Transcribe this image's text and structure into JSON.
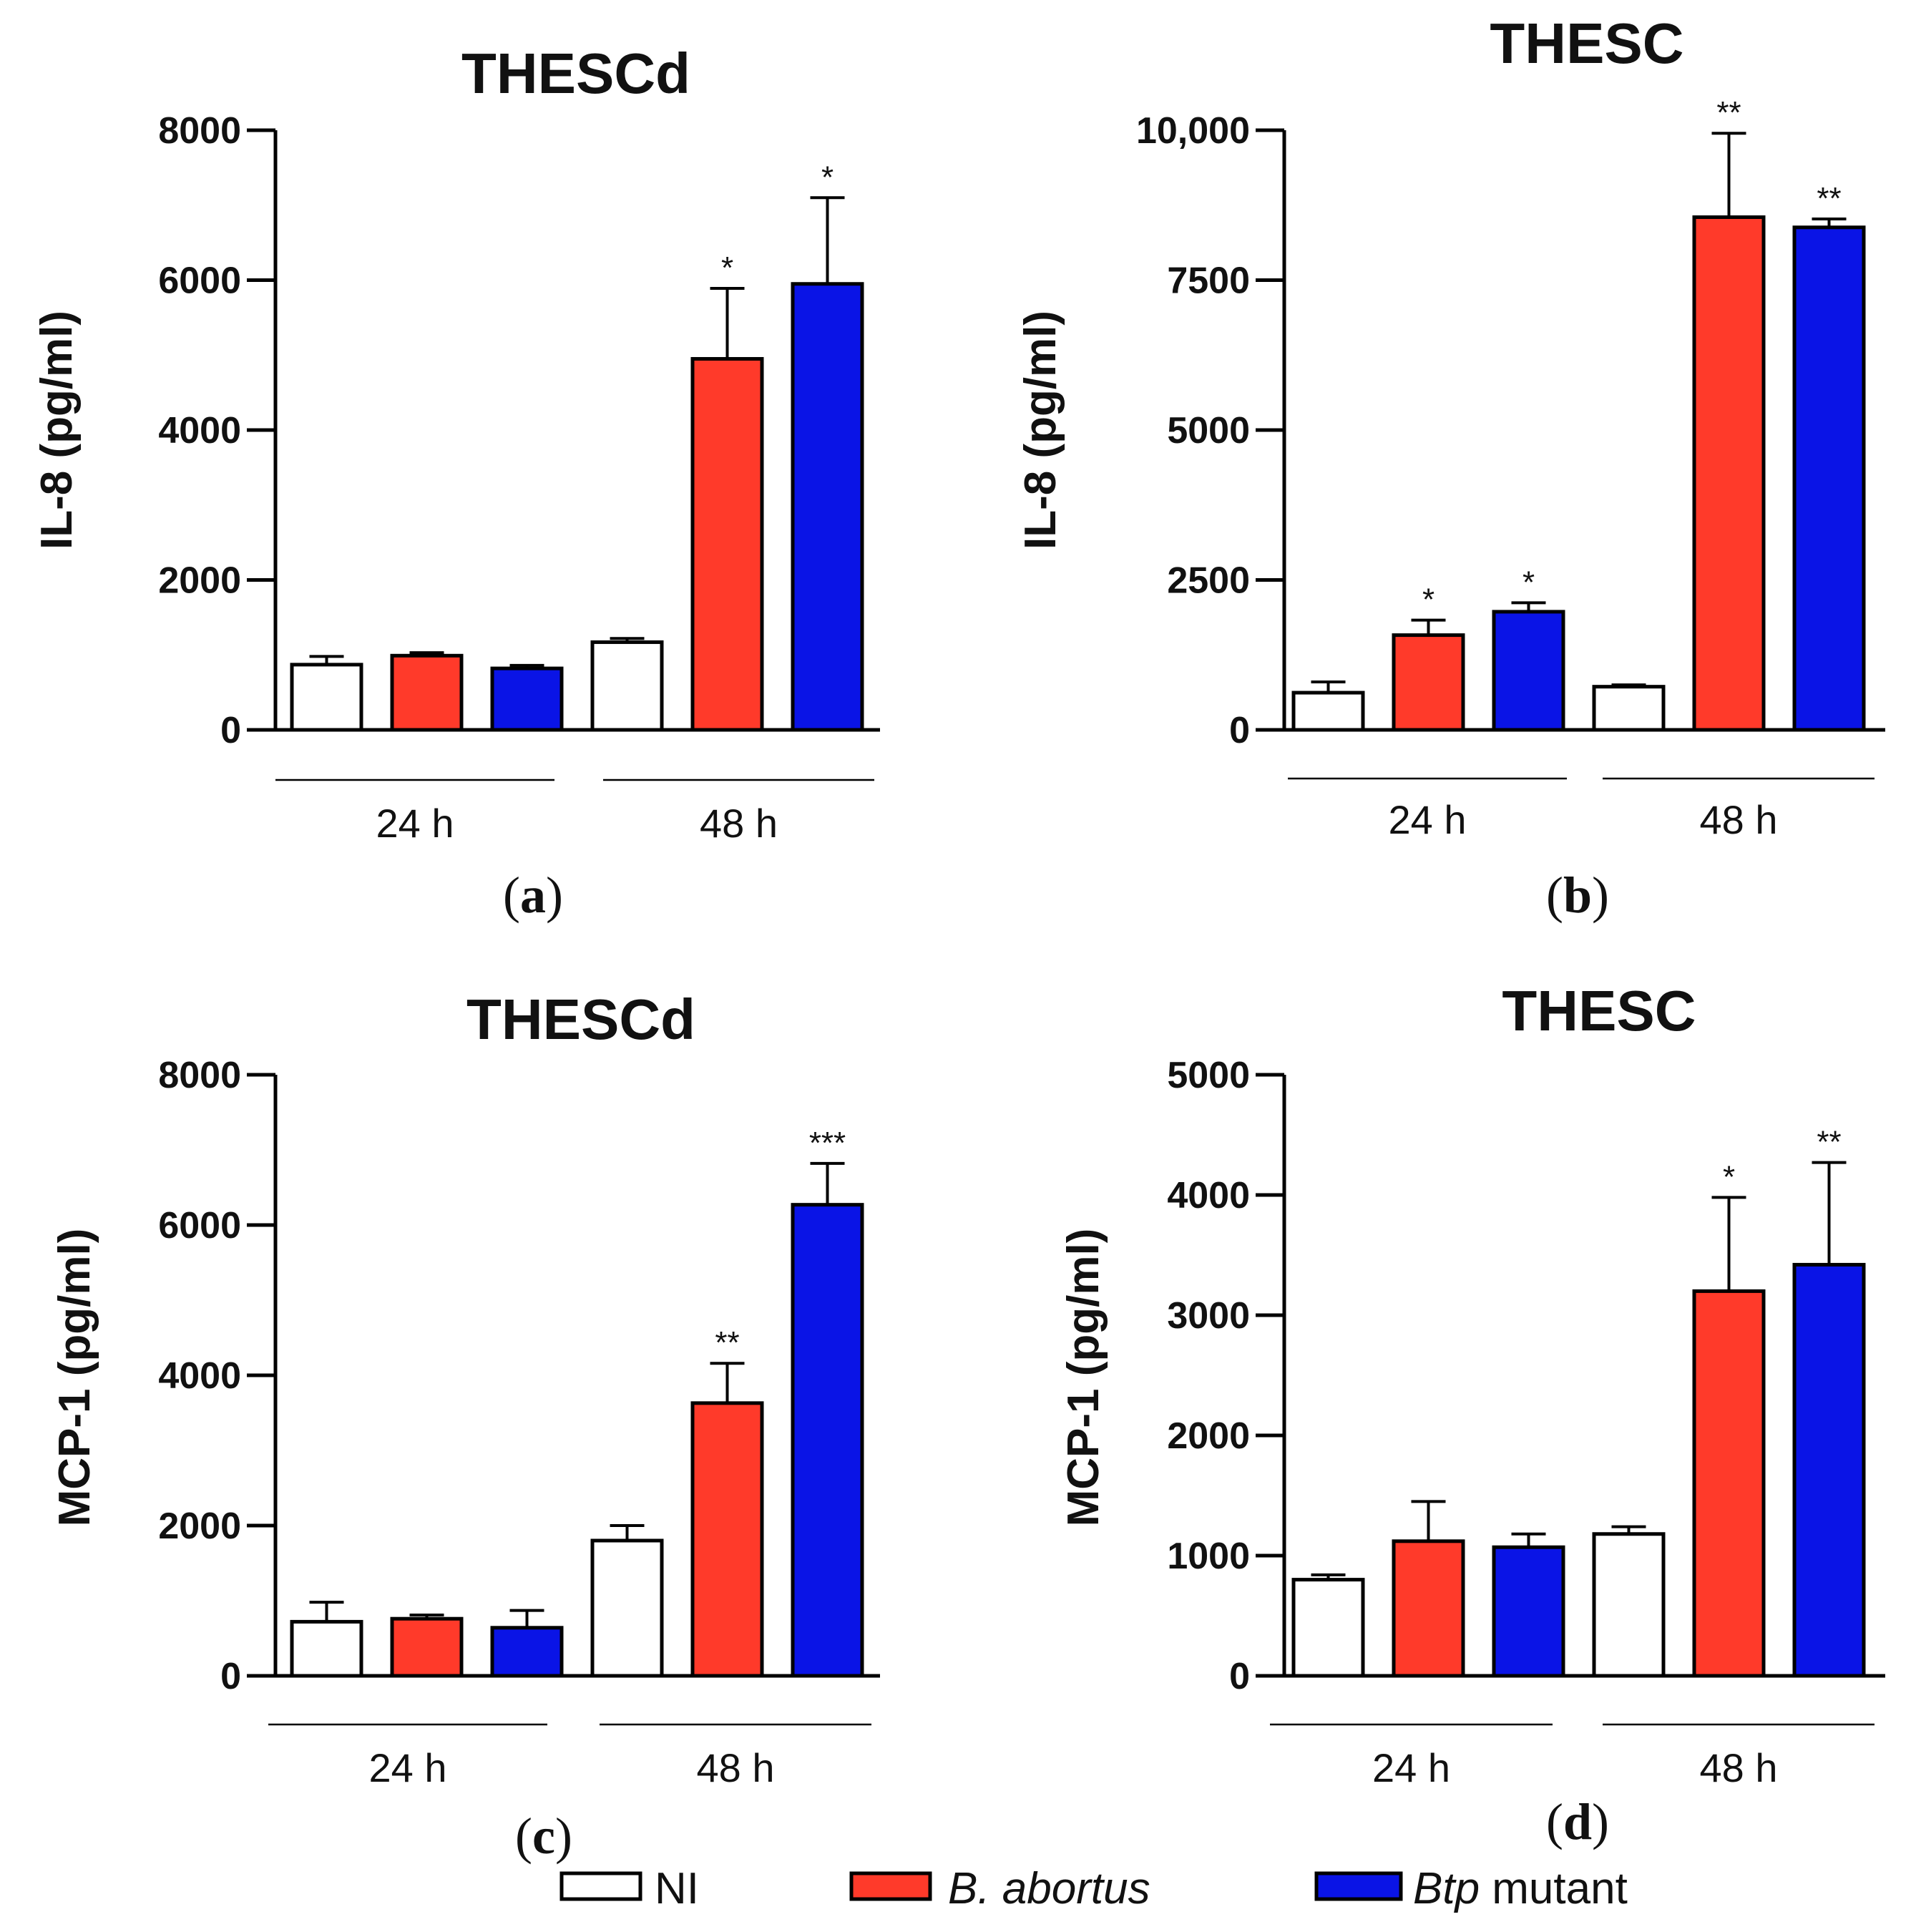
{
  "colors": {
    "NI": "#ffffff",
    "B. abortus": "#ff3a2a",
    "Btp mutant": "#0a14e6",
    "axis": "#000000"
  },
  "legend": [
    {
      "series": "NI",
      "prefix": "",
      "italic": "",
      "text": "NI"
    },
    {
      "series": "B. abortus",
      "prefix": "",
      "italic": "B. abortus",
      "text": ""
    },
    {
      "series": "Btp mutant",
      "prefix": "",
      "italic": "Btp",
      "text": " mutant"
    }
  ],
  "chart_data": [
    {
      "panel": "(a)",
      "sub_label": {
        "open": "(",
        "letter": "a",
        "close": ")"
      },
      "type": "bar",
      "title": "THESCd",
      "ylabel": "IL-8 (pg/ml)",
      "ylim": [
        0,
        8000
      ],
      "yticks": [
        0,
        2000,
        4000,
        6000,
        8000
      ],
      "ytick_labels": [
        "0",
        "2000",
        "4000",
        "6000",
        "8000"
      ],
      "groups": [
        "24 h",
        "48 h"
      ],
      "series_order": [
        "NI",
        "B. abortus",
        "Btp mutant"
      ],
      "bars": [
        {
          "group": "24 h",
          "series": "NI",
          "value": 870,
          "error": 110,
          "sig": ""
        },
        {
          "group": "24 h",
          "series": "B. abortus",
          "value": 990,
          "error": 40,
          "sig": ""
        },
        {
          "group": "24 h",
          "series": "Btp mutant",
          "value": 820,
          "error": 40,
          "sig": ""
        },
        {
          "group": "48 h",
          "series": "NI",
          "value": 1170,
          "error": 50,
          "sig": ""
        },
        {
          "group": "48 h",
          "series": "B. abortus",
          "value": 4950,
          "error": 940,
          "sig": "*"
        },
        {
          "group": "48 h",
          "series": "Btp mutant",
          "value": 5950,
          "error": 1150,
          "sig": "*"
        }
      ]
    },
    {
      "panel": "(b)",
      "sub_label": {
        "open": "(",
        "letter": "b",
        "close": ")"
      },
      "type": "bar",
      "title": "THESC",
      "ylabel": "IL-8 (pg/ml)",
      "ylim": [
        0,
        10000
      ],
      "yticks": [
        0,
        2500,
        5000,
        7500,
        10000
      ],
      "ytick_labels": [
        "0",
        "2500",
        "5000",
        "7500",
        "10,000"
      ],
      "groups": [
        "24 h",
        "48 h"
      ],
      "series_order": [
        "NI",
        "B. abortus",
        "Btp mutant"
      ],
      "bars": [
        {
          "group": "24 h",
          "series": "NI",
          "value": 620,
          "error": 180,
          "sig": ""
        },
        {
          "group": "24 h",
          "series": "B. abortus",
          "value": 1580,
          "error": 250,
          "sig": "*"
        },
        {
          "group": "24 h",
          "series": "Btp mutant",
          "value": 1970,
          "error": 150,
          "sig": "*"
        },
        {
          "group": "48 h",
          "series": "NI",
          "value": 720,
          "error": 30,
          "sig": ""
        },
        {
          "group": "48 h",
          "series": "B. abortus",
          "value": 8550,
          "error": 1400,
          "sig": "**"
        },
        {
          "group": "48 h",
          "series": "Btp mutant",
          "value": 8380,
          "error": 140,
          "sig": "**"
        }
      ]
    },
    {
      "panel": "(c)",
      "sub_label": {
        "open": "(",
        "letter": "c",
        "close": ")"
      },
      "type": "bar",
      "title": "THESCd",
      "ylabel": "MCP-1 (pg/ml)",
      "ylim": [
        0,
        8000
      ],
      "yticks": [
        0,
        2000,
        4000,
        6000,
        8000
      ],
      "ytick_labels": [
        "0",
        "2000",
        "4000",
        "6000",
        "8000"
      ],
      "groups": [
        "24 h",
        "48 h"
      ],
      "series_order": [
        "NI",
        "B. abortus",
        "Btp mutant"
      ],
      "bars": [
        {
          "group": "24 h",
          "series": "NI",
          "value": 720,
          "error": 260,
          "sig": ""
        },
        {
          "group": "24 h",
          "series": "B. abortus",
          "value": 760,
          "error": 50,
          "sig": ""
        },
        {
          "group": "24 h",
          "series": "Btp mutant",
          "value": 640,
          "error": 230,
          "sig": ""
        },
        {
          "group": "48 h",
          "series": "NI",
          "value": 1800,
          "error": 200,
          "sig": ""
        },
        {
          "group": "48 h",
          "series": "B. abortus",
          "value": 3630,
          "error": 530,
          "sig": "**"
        },
        {
          "group": "48 h",
          "series": "Btp mutant",
          "value": 6270,
          "error": 550,
          "sig": "***"
        }
      ]
    },
    {
      "panel": "(d)",
      "sub_label": {
        "open": "(",
        "letter": "d",
        "close": ")"
      },
      "type": "bar",
      "title": "THESC",
      "ylabel": "MCP-1 (pg/ml)",
      "ylim": [
        0,
        5000
      ],
      "yticks": [
        0,
        1000,
        2000,
        3000,
        4000,
        5000
      ],
      "ytick_labels": [
        "0",
        "1000",
        "2000",
        "3000",
        "4000",
        "5000"
      ],
      "groups": [
        "24 h",
        "48 h"
      ],
      "series_order": [
        "NI",
        "B. abortus",
        "Btp mutant"
      ],
      "bars": [
        {
          "group": "24 h",
          "series": "NI",
          "value": 800,
          "error": 40,
          "sig": ""
        },
        {
          "group": "24 h",
          "series": "B. abortus",
          "value": 1120,
          "error": 330,
          "sig": ""
        },
        {
          "group": "24 h",
          "series": "Btp mutant",
          "value": 1070,
          "error": 110,
          "sig": ""
        },
        {
          "group": "48 h",
          "series": "NI",
          "value": 1180,
          "error": 60,
          "sig": ""
        },
        {
          "group": "48 h",
          "series": "B. abortus",
          "value": 3200,
          "error": 780,
          "sig": "*"
        },
        {
          "group": "48 h",
          "series": "Btp mutant",
          "value": 3420,
          "error": 850,
          "sig": "**"
        }
      ]
    }
  ]
}
